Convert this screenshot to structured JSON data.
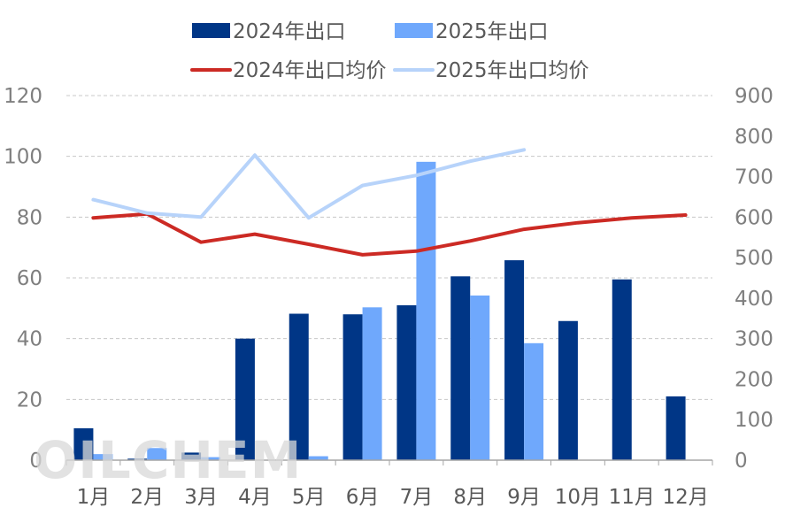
{
  "watermark": "OILCHEM",
  "chart_data": {
    "type": "bar",
    "categories": [
      "1月",
      "2月",
      "3月",
      "4月",
      "5月",
      "6月",
      "7月",
      "8月",
      "9月",
      "10月",
      "11月",
      "12月"
    ],
    "series": [
      {
        "name": "2024年出口",
        "type": "bar",
        "axis": "left",
        "color": "#003686",
        "values": [
          10.5,
          0.5,
          2.5,
          40,
          48.2,
          48,
          51,
          60.5,
          65.8,
          45.8,
          59.5,
          21
        ]
      },
      {
        "name": "2025年出口",
        "type": "bar",
        "axis": "left",
        "color": "#6fa8fc",
        "values": [
          2,
          4,
          1,
          null,
          1.3,
          50.3,
          98.2,
          54.2,
          38.5,
          null,
          null,
          null
        ]
      },
      {
        "name": "2024年出口均价",
        "type": "line",
        "axis": "right",
        "color": "#cc2a24",
        "values": [
          598,
          608,
          538,
          558,
          533,
          507,
          516,
          541,
          570,
          586,
          598,
          605
        ]
      },
      {
        "name": "2025年出口均价",
        "type": "line",
        "axis": "right",
        "color": "#b7d3fa",
        "values": [
          643,
          610,
          600,
          753,
          598,
          678,
          703,
          738,
          766,
          null,
          null,
          null
        ]
      }
    ],
    "y_left": {
      "min": 0,
      "max": 120,
      "ticks": [
        "0",
        "20",
        "40",
        "60",
        "80",
        "100",
        "120"
      ]
    },
    "y_right": {
      "min": 0,
      "max": 900,
      "ticks": [
        "0",
        "100",
        "200",
        "300",
        "400",
        "500",
        "600",
        "700",
        "800",
        "900"
      ]
    },
    "grid": "horizontal dashed",
    "legend_position": "top"
  }
}
